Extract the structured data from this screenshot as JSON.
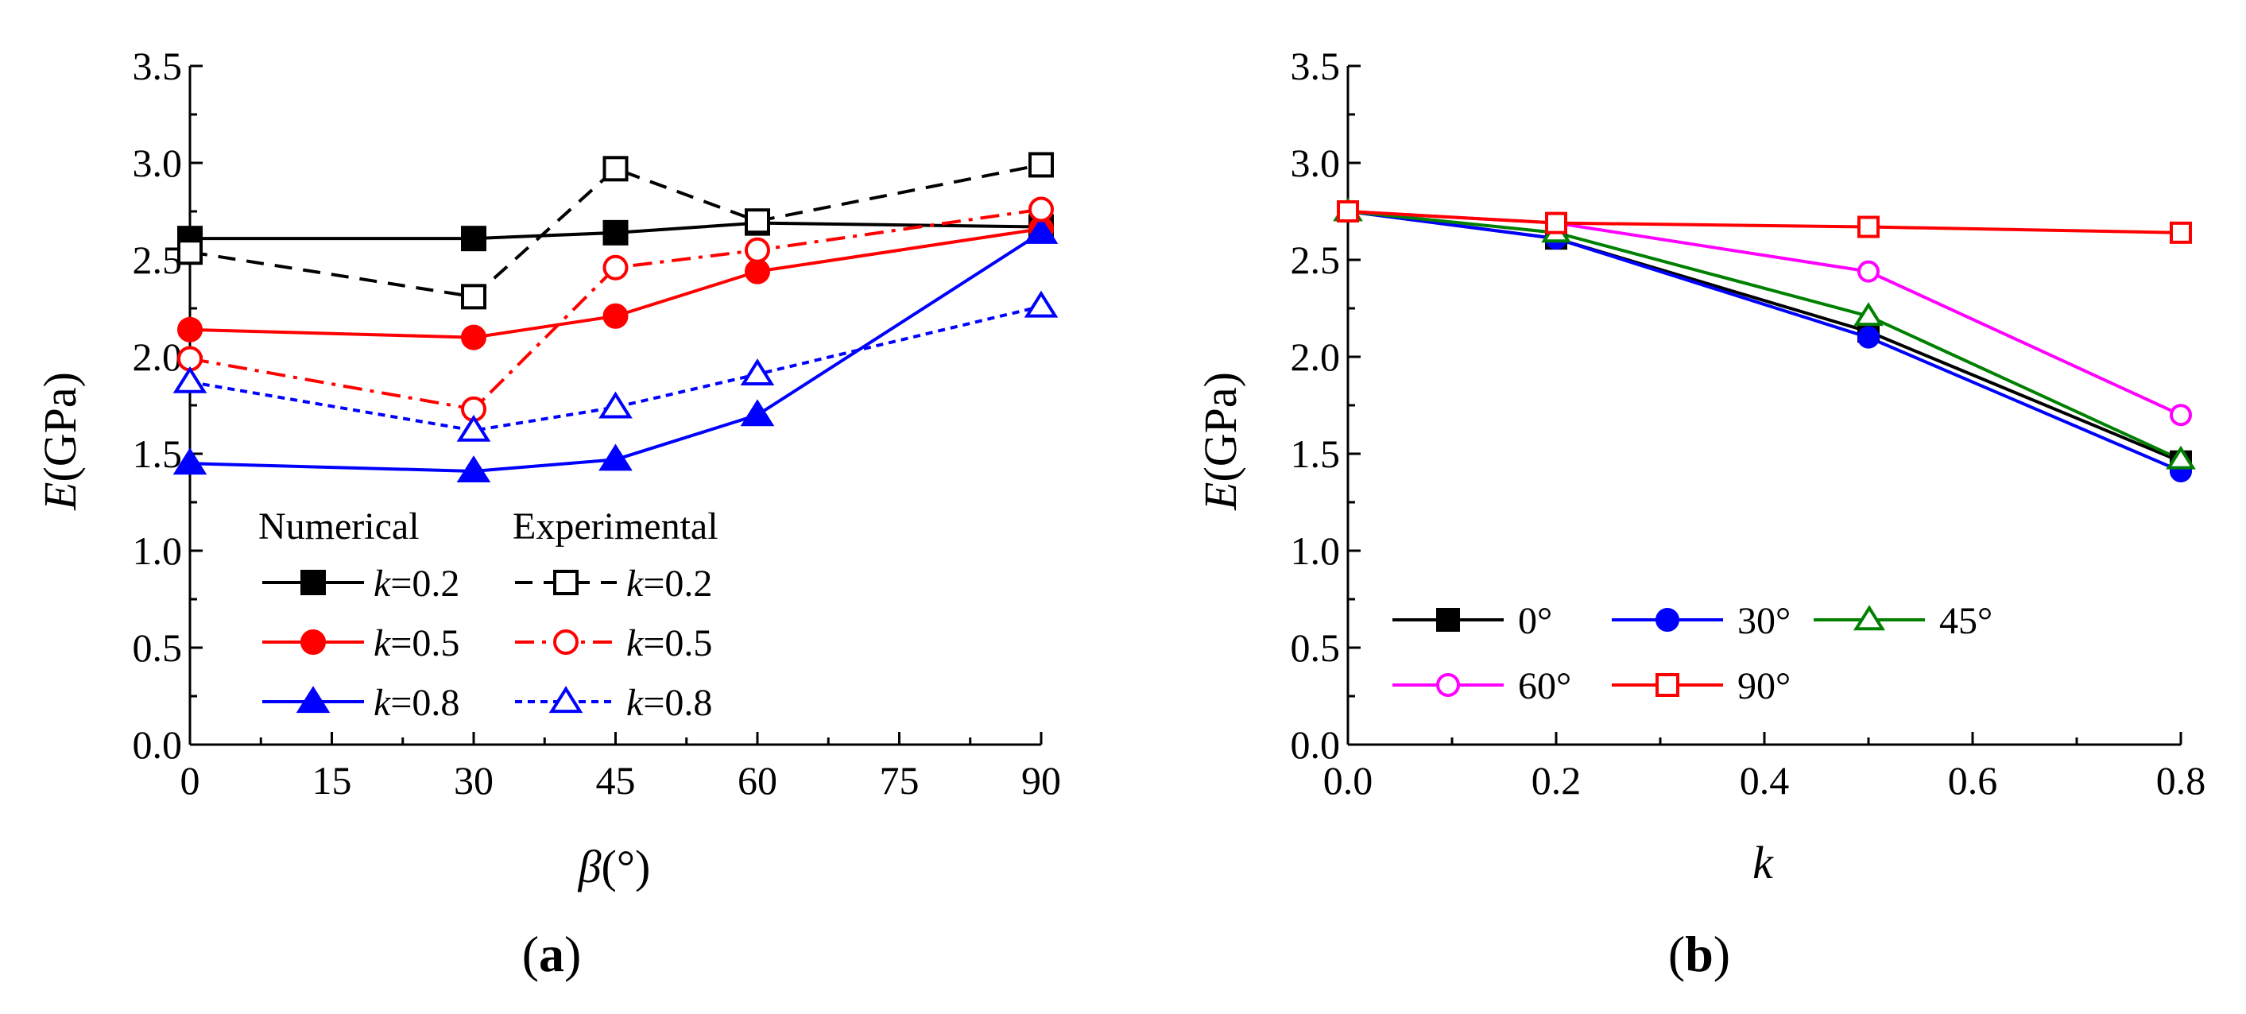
{
  "chart_data": [
    {
      "panel": "(a)",
      "panel_label": {
        "open": "(",
        "letter": "a",
        "close": ")"
      },
      "type": "line",
      "xlabel": {
        "symbol": "β",
        "unit": "(°)"
      },
      "ylabel": {
        "symbol": "E",
        "unit": "(GPa)"
      },
      "xlim": [
        0,
        90
      ],
      "ylim": [
        0,
        3.5
      ],
      "xticks": [
        "0",
        "15",
        "30",
        "45",
        "60",
        "75",
        "90"
      ],
      "yticks": [
        "0.0",
        "0.5",
        "1.0",
        "1.5",
        "2.0",
        "2.5",
        "3.0",
        "3.5"
      ],
      "grid": false,
      "legend_position": "bottom-center",
      "legend_headers": [
        "Numerical",
        "Experimental"
      ],
      "series": [
        {
          "name": "k=0.2",
          "group": "Numerical",
          "color": "#000000",
          "line": "solid",
          "marker": "square",
          "filled": true,
          "x": [
            0,
            30,
            45,
            60,
            90
          ],
          "y": [
            2.61,
            2.61,
            2.64,
            2.69,
            2.67
          ]
        },
        {
          "name": "k=0.5",
          "group": "Numerical",
          "color": "#ff0000",
          "line": "solid",
          "marker": "circle",
          "filled": true,
          "x": [
            0,
            30,
            45,
            60,
            90
          ],
          "y": [
            2.14,
            2.1,
            2.21,
            2.44,
            2.66
          ]
        },
        {
          "name": "k=0.8",
          "group": "Numerical",
          "color": "#0000ff",
          "line": "solid",
          "marker": "triangle",
          "filled": true,
          "x": [
            0,
            30,
            45,
            60,
            90
          ],
          "y": [
            1.45,
            1.41,
            1.47,
            1.7,
            2.64
          ]
        },
        {
          "name": "k=0.2",
          "group": "Experimental",
          "color": "#000000",
          "line": "dash",
          "marker": "square",
          "filled": false,
          "x": [
            0,
            30,
            45,
            60,
            90
          ],
          "y": [
            2.54,
            2.31,
            2.97,
            2.7,
            2.99
          ]
        },
        {
          "name": "k=0.5",
          "group": "Experimental",
          "color": "#ff0000",
          "line": "dashdot",
          "marker": "circle",
          "filled": false,
          "x": [
            0,
            30,
            45,
            60,
            90
          ],
          "y": [
            1.99,
            1.73,
            2.46,
            2.55,
            2.76
          ]
        },
        {
          "name": "k=0.8",
          "group": "Experimental",
          "color": "#0000ff",
          "line": "dot",
          "marker": "triangle",
          "filled": false,
          "x": [
            0,
            30,
            45,
            60,
            90
          ],
          "y": [
            1.87,
            1.62,
            1.74,
            1.91,
            2.26
          ]
        }
      ]
    },
    {
      "panel": "(b)",
      "panel_label": {
        "open": "(",
        "letter": "b",
        "close": ")"
      },
      "type": "line",
      "xlabel": {
        "symbol": "k",
        "unit": ""
      },
      "ylabel": {
        "symbol": "E",
        "unit": "(GPa)"
      },
      "xlim": [
        0,
        0.8
      ],
      "ylim": [
        0,
        3.5
      ],
      "xticks": [
        "0.0",
        "0.2",
        "0.4",
        "0.6",
        "0.8"
      ],
      "yticks": [
        "0.0",
        "0.5",
        "1.0",
        "1.5",
        "2.0",
        "2.5",
        "3.0",
        "3.5"
      ],
      "grid": false,
      "legend_position": "bottom-left",
      "series": [
        {
          "name": "0°",
          "color": "#000000",
          "marker": "square",
          "filled": true,
          "x": [
            0,
            0.2,
            0.5,
            0.8
          ],
          "y": [
            2.75,
            2.61,
            2.13,
            1.46
          ]
        },
        {
          "name": "30°",
          "color": "#0000ff",
          "marker": "circle",
          "filled": true,
          "x": [
            0,
            0.2,
            0.5,
            0.8
          ],
          "y": [
            2.75,
            2.61,
            2.1,
            1.41
          ]
        },
        {
          "name": "45°",
          "color": "#008000",
          "marker": "triangle",
          "filled": false,
          "x": [
            0,
            0.2,
            0.5,
            0.8
          ],
          "y": [
            2.75,
            2.64,
            2.21,
            1.47
          ]
        },
        {
          "name": "60°",
          "color": "#ff00ff",
          "marker": "circle",
          "filled": false,
          "x": [
            0,
            0.2,
            0.5,
            0.8
          ],
          "y": [
            2.75,
            2.69,
            2.44,
            1.7
          ]
        },
        {
          "name": "90°",
          "color": "#ff0000",
          "marker": "square",
          "filled": false,
          "x": [
            0,
            0.2,
            0.5,
            0.8
          ],
          "y": [
            2.75,
            2.69,
            2.67,
            2.64
          ]
        }
      ]
    }
  ]
}
